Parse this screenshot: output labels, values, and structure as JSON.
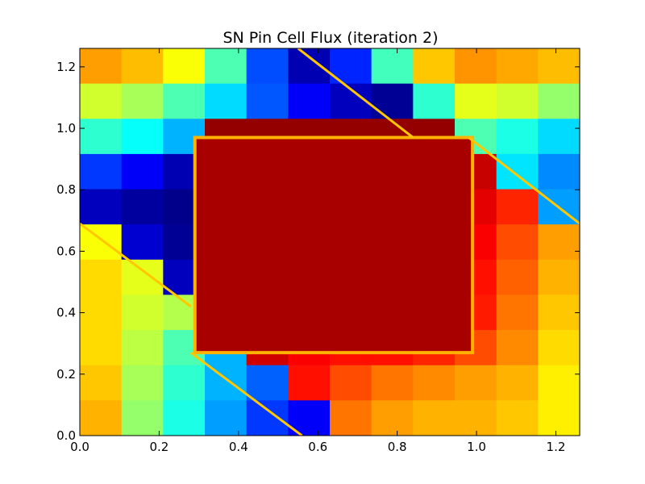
{
  "chart_data": {
    "type": "heatmap",
    "title": "SN Pin Cell Flux (iteration 2)",
    "xlabel": "",
    "ylabel": "",
    "xlim": [
      0.0,
      1.26
    ],
    "ylim": [
      0.0,
      1.26
    ],
    "x_ticks": [
      0.0,
      0.2,
      0.4,
      0.6,
      0.8,
      1.0,
      1.2
    ],
    "y_ticks": [
      0.0,
      0.2,
      0.4,
      0.6,
      0.8,
      1.0,
      1.2
    ],
    "x_tick_labels": [
      "0.0",
      "0.2",
      "0.4",
      "0.6",
      "0.8",
      "1.0",
      "1.2"
    ],
    "y_tick_labels": [
      "0.0",
      "0.2",
      "0.4",
      "0.6",
      "0.8",
      "1.0",
      "1.2"
    ],
    "colormap": "jet",
    "grid": false,
    "fuel_region": {
      "x": [
        0.29,
        0.99
      ],
      "y": [
        0.27,
        0.97
      ]
    },
    "ray_edges": [
      {
        "x": [
          0.0,
          0.28
        ],
        "y": [
          0.69,
          0.42
        ]
      },
      {
        "x": [
          0.28,
          0.56
        ],
        "y": [
          0.27,
          0.0
        ]
      },
      {
        "x": [
          0.55,
          0.84
        ],
        "y": [
          1.26,
          0.97
        ]
      },
      {
        "x": [
          0.98,
          1.26
        ],
        "y": [
          0.97,
          0.69
        ]
      }
    ],
    "relative_flux_grid": [
      [
        0.72,
        0.69,
        0.62,
        0.45,
        0.2,
        0.05,
        0.16,
        0.44,
        0.68,
        0.73,
        0.71,
        0.69
      ],
      [
        0.58,
        0.54,
        0.45,
        0.34,
        0.21,
        0.12,
        0.06,
        0.02,
        0.42,
        0.6,
        0.58,
        0.52
      ],
      [
        0.42,
        0.38,
        0.3,
        0.98,
        0.98,
        0.98,
        0.98,
        0.98,
        0.98,
        0.45,
        0.4,
        0.34
      ],
      [
        0.18,
        0.12,
        0.05,
        0.72,
        0.98,
        0.98,
        0.98,
        0.98,
        0.97,
        0.93,
        0.35,
        0.26
      ],
      [
        0.06,
        0.03,
        0.01,
        0.72,
        0.98,
        0.98,
        0.98,
        0.98,
        0.96,
        0.9,
        0.84,
        0.28
      ],
      [
        0.62,
        0.08,
        0.02,
        0.72,
        0.98,
        0.98,
        0.98,
        0.98,
        0.95,
        0.88,
        0.8,
        0.72
      ],
      [
        0.66,
        0.6,
        0.06,
        0.94,
        0.98,
        0.98,
        0.98,
        0.98,
        0.94,
        0.86,
        0.78,
        0.7
      ],
      [
        0.66,
        0.58,
        0.55,
        0.98,
        0.98,
        0.98,
        0.98,
        0.98,
        0.92,
        0.85,
        0.76,
        0.68
      ],
      [
        0.66,
        0.56,
        0.45,
        0.3,
        0.92,
        0.88,
        0.86,
        0.86,
        0.84,
        0.8,
        0.74,
        0.66
      ],
      [
        0.68,
        0.54,
        0.42,
        0.3,
        0.22,
        0.86,
        0.8,
        0.76,
        0.74,
        0.72,
        0.7,
        0.64
      ],
      [
        0.7,
        0.52,
        0.4,
        0.28,
        0.18,
        0.12,
        0.76,
        0.72,
        0.7,
        0.7,
        0.68,
        0.64
      ]
    ]
  }
}
